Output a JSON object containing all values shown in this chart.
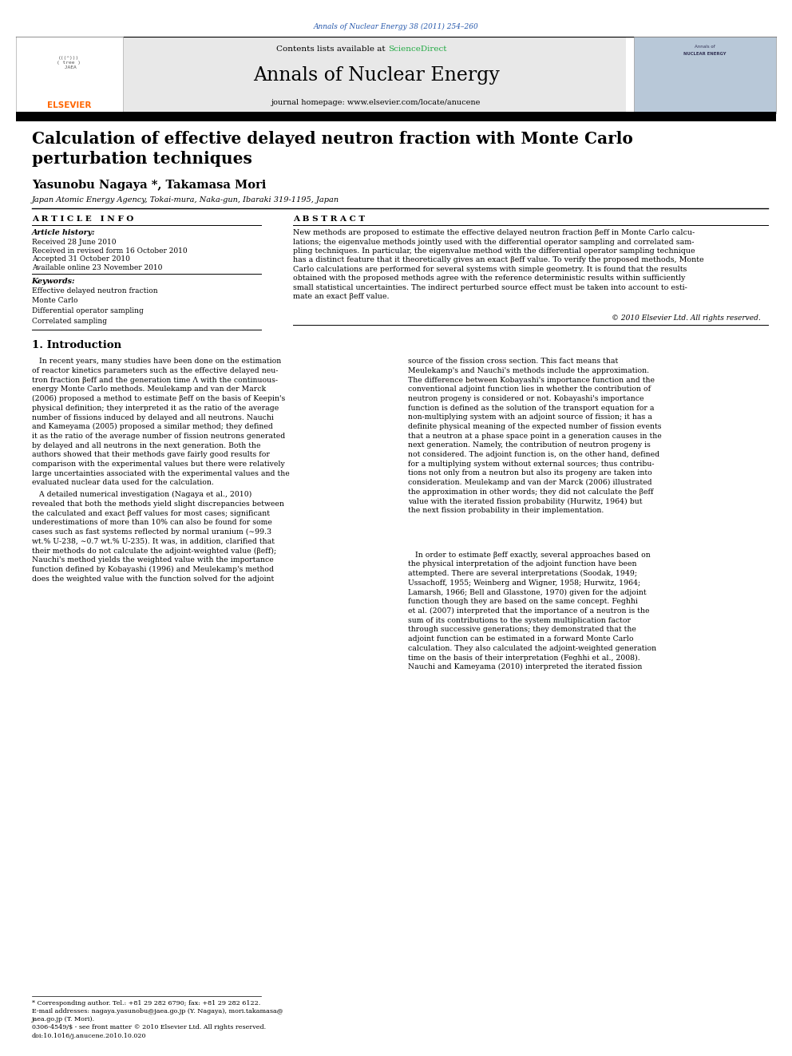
{
  "page_width": 9.92,
  "page_height": 13.23,
  "background_color": "#ffffff",
  "header_journal_ref": "Annals of Nuclear Energy 38 (2011) 254–260",
  "journal_name": "Annals of Nuclear Energy",
  "journal_homepage": "journal homepage: www.elsevier.com/locate/anucene",
  "contents_text": "Contents lists available at ",
  "sciencedirect": "ScienceDirect",
  "paper_title": "Calculation of effective delayed neutron fraction with Monte Carlo\nperturbation techniques",
  "authors": "Yasunobu Nagaya *, Takamasa Mori",
  "affiliation": "Japan Atomic Energy Agency, Tokai-mura, Naka-gun, Ibaraki 319-1195, Japan",
  "article_info_label": "A R T I C L E   I N F O",
  "abstract_label": "A B S T R A C T",
  "article_history_label": "Article history:",
  "received": "Received 28 June 2010",
  "received_revised": "Received in revised form 16 October 2010",
  "accepted": "Accepted 31 October 2010",
  "available_online": "Available online 23 November 2010",
  "keywords_label": "Keywords:",
  "keywords": [
    "Effective delayed neutron fraction",
    "Monte Carlo",
    "Differential operator sampling",
    "Correlated sampling"
  ],
  "abstract_text": "New methods are proposed to estimate the effective delayed neutron fraction βeff in Monte Carlo calcu-\nlations; the eigenvalue methods jointly used with the differential operator sampling and correlated sam-\npling techniques. In particular, the eigenvalue method with the differential operator sampling technique\nhas a distinct feature that it theoretically gives an exact βeff value. To verify the proposed methods, Monte\nCarlo calculations are performed for several systems with simple geometry. It is found that the results\nobtained with the proposed methods agree with the reference deterministic results within sufficiently\nsmall statistical uncertainties. The indirect perturbed source effect must be taken into account to esti-\nmate an exact βeff value.",
  "copyright": "© 2010 Elsevier Ltd. All rights reserved.",
  "section1_title": "1. Introduction",
  "intro_col1_p1": "   In recent years, many studies have been done on the estimation\nof reactor kinetics parameters such as the effective delayed neu-\ntron fraction βeff and the generation time Λ with the continuous-\nenergy Monte Carlo methods. Meulekamp and van der Marck\n(2006) proposed a method to estimate βeff on the basis of Keepin's\nphysical definition; they interpreted it as the ratio of the average\nnumber of fissions induced by delayed and all neutrons. Nauchi\nand Kameyama (2005) proposed a similar method; they defined\nit as the ratio of the average number of fission neutrons generated\nby delayed and all neutrons in the next generation. Both the\nauthors showed that their methods gave fairly good results for\ncomparison with the experimental values but there were relatively\nlarge uncertainties associated with the experimental values and the\nevaluated nuclear data used for the calculation.",
  "intro_col1_p2": "   A detailed numerical investigation (Nagaya et al., 2010)\nrevealed that both the methods yield slight discrepancies between\nthe calculated and exact βeff values for most cases; significant\nunderestimations of more than 10% can also be found for some\ncases such as fast systems reflected by normal uranium (∼99.3\nwt.% U-238, ∼0.7 wt.% U-235). It was, in addition, clarified that\ntheir methods do not calculate the adjoint-weighted value (βeff);\nNauchi's method yields the weighted value with the importance\nfunction defined by Kobayashi (1996) and Meulekamp's method\ndoes the weighted value with the function solved for the adjoint",
  "intro_col2_p1": "source of the fission cross section. This fact means that\nMeulekamp's and Nauchi's methods include the approximation.\nThe difference between Kobayashi's importance function and the\nconventional adjoint function lies in whether the contribution of\nneutron progeny is considered or not. Kobayashi's importance\nfunction is defined as the solution of the transport equation for a\nnon-multiplying system with an adjoint source of fission; it has a\ndefinite physical meaning of the expected number of fission events\nthat a neutron at a phase space point in a generation causes in the\nnext generation. Namely, the contribution of neutron progeny is\nnot considered. The adjoint function is, on the other hand, defined\nfor a multiplying system without external sources; thus contribu-\ntions not only from a neutron but also its progeny are taken into\nconsideration. Meulekamp and van der Marck (2006) illustrated\nthe approximation in other words; they did not calculate the βeff\nvalue with the iterated fission probability (Hurwitz, 1964) but\nthe next fission probability in their implementation.",
  "intro_col2_p2": "   In order to estimate βeff exactly, several approaches based on\nthe physical interpretation of the adjoint function have been\nattempted. There are several interpretations (Soodak, 1949;\nUssachoff, 1955; Weinberg and Wigner, 1958; Hurwitz, 1964;\nLamarsh, 1966; Bell and Glasstone, 1970) given for the adjoint\nfunction though they are based on the same concept. Feghhi\net al. (2007) interpreted that the importance of a neutron is the\nsum of its contributions to the system multiplication factor\nthrough successive generations; they demonstrated that the\nadjoint function can be estimated in a forward Monte Carlo\ncalculation. They also calculated the adjoint-weighted generation\ntime on the basis of their interpretation (Feghhi et al., 2008).\nNauchi and Kameyama (2010) interpreted the iterated fission",
  "footer_note": "* Corresponding author. Tel.: +81 29 282 6790; fax: +81 29 282 6122.",
  "footer_email": "E-mail addresses: nagaya.yasunobu@jaea.go.jp (Y. Nagaya), mori.takamasa@\njaea.go.jp (T. Mori).",
  "footer_issn": "0306-4549/$ - see front matter © 2010 Elsevier Ltd. All rights reserved.",
  "footer_doi": "doi:10.1016/j.anucene.2010.10.020",
  "elsevier_color": "#FF6600",
  "link_color": "#2255AA",
  "sciencedirect_color": "#22AA44",
  "header_bg_color": "#E8E8E8",
  "right_box_color": "#B8C8D8",
  "thick_bar_color": "#000000"
}
